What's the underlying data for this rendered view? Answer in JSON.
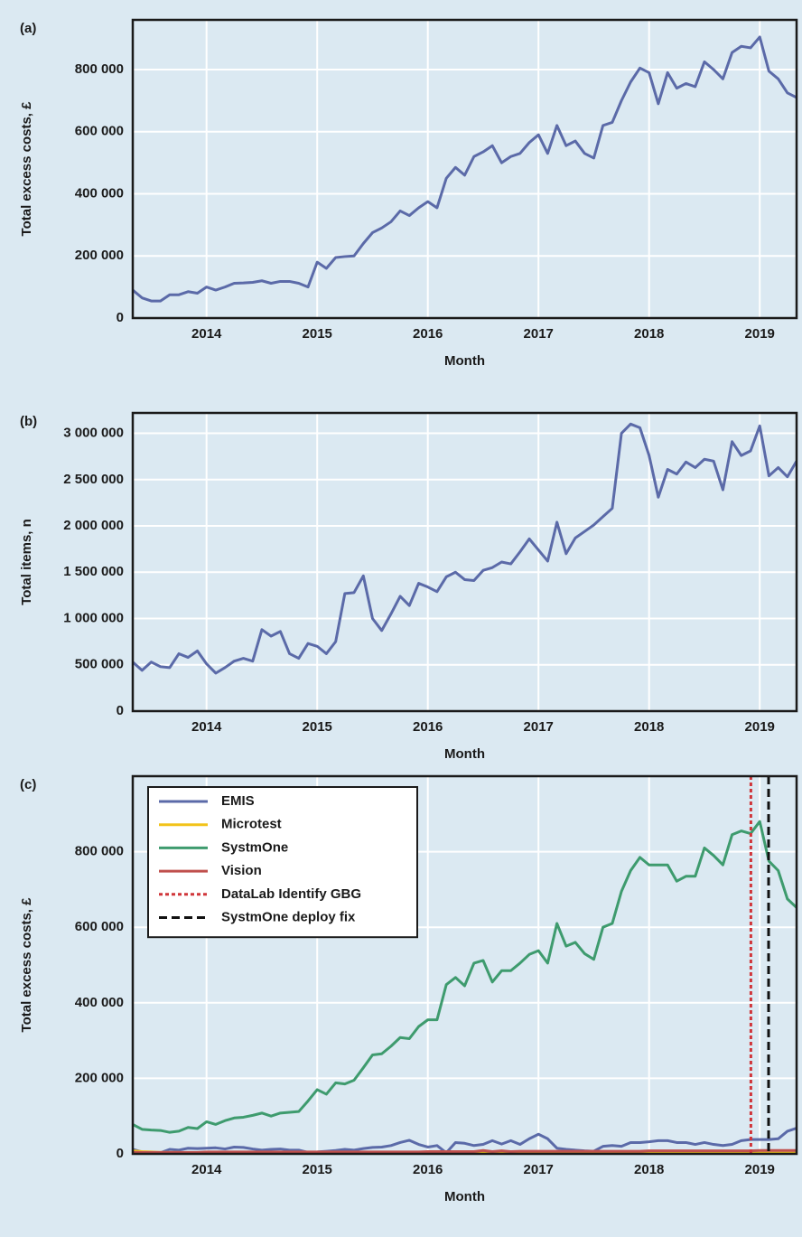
{
  "chart_data": [
    {
      "type": "line",
      "panel_label": "(a)",
      "ylabel": "Total excess costs, £",
      "xlabel": "Month",
      "color": "#5b6aa8",
      "grid": true,
      "xlim": [
        2013.333,
        2019.333
      ],
      "xticks": [
        2014,
        2015,
        2016,
        2017,
        2018,
        2019
      ],
      "ylim": [
        0,
        960000
      ],
      "yticks": [
        0,
        {
          "value": 200000,
          "label": "200 000"
        },
        {
          "value": 400000,
          "label": "400 000"
        },
        {
          "value": 600000,
          "label": "600 000"
        },
        {
          "value": 800000,
          "label": "800 000"
        }
      ],
      "x": [
        2013.333,
        2013.417,
        2013.5,
        2013.583,
        2013.667,
        2013.75,
        2013.833,
        2013.917,
        2014,
        2014.083,
        2014.167,
        2014.25,
        2014.333,
        2014.417,
        2014.5,
        2014.583,
        2014.667,
        2014.75,
        2014.833,
        2014.917,
        2015,
        2015.083,
        2015.167,
        2015.25,
        2015.333,
        2015.417,
        2015.5,
        2015.583,
        2015.667,
        2015.75,
        2015.833,
        2015.917,
        2016,
        2016.083,
        2016.167,
        2016.25,
        2016.333,
        2016.417,
        2016.5,
        2016.583,
        2016.667,
        2016.75,
        2016.833,
        2016.917,
        2017,
        2017.083,
        2017.167,
        2017.25,
        2017.333,
        2017.417,
        2017.5,
        2017.583,
        2017.667,
        2017.75,
        2017.833,
        2017.917,
        2018,
        2018.083,
        2018.167,
        2018.25,
        2018.333,
        2018.417,
        2018.5,
        2018.583,
        2018.667,
        2018.75,
        2018.833,
        2018.917,
        2019,
        2019.083,
        2019.167,
        2019.25,
        2019.333
      ],
      "values": [
        90000,
        65000,
        55000,
        55000,
        75000,
        75000,
        85000,
        80000,
        100000,
        90000,
        100000,
        112000,
        113000,
        115000,
        120000,
        112000,
        118000,
        118000,
        112000,
        100000,
        180000,
        160000,
        195000,
        198000,
        200000,
        240000,
        275000,
        290000,
        310000,
        345000,
        330000,
        355000,
        375000,
        355000,
        450000,
        485000,
        460000,
        520000,
        535000,
        555000,
        500000,
        520000,
        530000,
        565000,
        590000,
        530000,
        620000,
        555000,
        570000,
        530000,
        515000,
        620000,
        630000,
        700000,
        760000,
        805000,
        790000,
        690000,
        790000,
        740000,
        755000,
        745000,
        825000,
        800000,
        770000,
        855000,
        875000,
        870000,
        905000,
        795000,
        770000,
        725000,
        710000
      ]
    },
    {
      "type": "line",
      "panel_label": "(b)",
      "ylabel": "Total items, n",
      "xlabel": "Month",
      "color": "#5b6aa8",
      "grid": true,
      "xlim": [
        2013.333,
        2019.333
      ],
      "xticks": [
        2014,
        2015,
        2016,
        2017,
        2018,
        2019
      ],
      "ylim": [
        0,
        3220000
      ],
      "yticks": [
        0,
        {
          "value": 500000,
          "label": "500 000"
        },
        {
          "value": 1000000,
          "label": "1 000 000"
        },
        {
          "value": 1500000,
          "label": "1 500 000"
        },
        {
          "value": 2000000,
          "label": "2 000 000"
        },
        {
          "value": 2500000,
          "label": "2 500 000"
        },
        {
          "value": 3000000,
          "label": "3 000 000"
        }
      ],
      "x": [
        2013.333,
        2013.417,
        2013.5,
        2013.583,
        2013.667,
        2013.75,
        2013.833,
        2013.917,
        2014,
        2014.083,
        2014.167,
        2014.25,
        2014.333,
        2014.417,
        2014.5,
        2014.583,
        2014.667,
        2014.75,
        2014.833,
        2014.917,
        2015,
        2015.083,
        2015.167,
        2015.25,
        2015.333,
        2015.417,
        2015.5,
        2015.583,
        2015.667,
        2015.75,
        2015.833,
        2015.917,
        2016,
        2016.083,
        2016.167,
        2016.25,
        2016.333,
        2016.417,
        2016.5,
        2016.583,
        2016.667,
        2016.75,
        2016.833,
        2016.917,
        2017,
        2017.083,
        2017.167,
        2017.25,
        2017.333,
        2017.417,
        2017.5,
        2017.583,
        2017.667,
        2017.75,
        2017.833,
        2017.917,
        2018,
        2018.083,
        2018.167,
        2018.25,
        2018.333,
        2018.417,
        2018.5,
        2018.583,
        2018.667,
        2018.75,
        2018.833,
        2018.917,
        2019,
        2019.083,
        2019.167,
        2019.25,
        2019.333
      ],
      "values": [
        530000,
        440000,
        530000,
        480000,
        470000,
        620000,
        580000,
        650000,
        510000,
        410000,
        470000,
        540000,
        570000,
        540000,
        880000,
        810000,
        860000,
        620000,
        570000,
        730000,
        700000,
        620000,
        750000,
        1270000,
        1280000,
        1460000,
        1000000,
        870000,
        1050000,
        1240000,
        1140000,
        1380000,
        1340000,
        1290000,
        1450000,
        1500000,
        1420000,
        1410000,
        1520000,
        1550000,
        1610000,
        1590000,
        1720000,
        1860000,
        1740000,
        1620000,
        2040000,
        1700000,
        1870000,
        1940000,
        2010000,
        2100000,
        2190000,
        3000000,
        3100000,
        3060000,
        2760000,
        2310000,
        2610000,
        2560000,
        2690000,
        2630000,
        2720000,
        2700000,
        2390000,
        2910000,
        2760000,
        2810000,
        3080000,
        2540000,
        2630000,
        2530000,
        2700000
      ]
    },
    {
      "type": "line",
      "panel_label": "(c)",
      "ylabel": "Total excess costs, £",
      "xlabel": "Month",
      "grid": true,
      "legend": "upper left",
      "xlim": [
        2013.333,
        2019.333
      ],
      "xticks": [
        2014,
        2015,
        2016,
        2017,
        2018,
        2019
      ],
      "ylim": [
        0,
        1000000
      ],
      "yticks": [
        0,
        {
          "value": 200000,
          "label": "200 000"
        },
        {
          "value": 400000,
          "label": "400 000"
        },
        {
          "value": 600000,
          "label": "600 000"
        },
        {
          "value": 800000,
          "label": "800 000"
        }
      ],
      "x": [
        2013.333,
        2013.417,
        2013.5,
        2013.583,
        2013.667,
        2013.75,
        2013.833,
        2013.917,
        2014,
        2014.083,
        2014.167,
        2014.25,
        2014.333,
        2014.417,
        2014.5,
        2014.583,
        2014.667,
        2014.75,
        2014.833,
        2014.917,
        2015,
        2015.083,
        2015.167,
        2015.25,
        2015.333,
        2015.417,
        2015.5,
        2015.583,
        2015.667,
        2015.75,
        2015.833,
        2015.917,
        2016,
        2016.083,
        2016.167,
        2016.25,
        2016.333,
        2016.417,
        2016.5,
        2016.583,
        2016.667,
        2016.75,
        2016.833,
        2016.917,
        2017,
        2017.083,
        2017.167,
        2017.25,
        2017.333,
        2017.417,
        2017.5,
        2017.583,
        2017.667,
        2017.75,
        2017.833,
        2017.917,
        2018,
        2018.083,
        2018.167,
        2018.25,
        2018.333,
        2018.417,
        2018.5,
        2018.583,
        2018.667,
        2018.75,
        2018.833,
        2018.917,
        2019,
        2019.083,
        2019.167,
        2019.25,
        2019.333
      ],
      "series": [
        {
          "name": "EMIS",
          "color": "#5b6aa8",
          "values": [
            12000,
            5000,
            3000,
            3000,
            12000,
            10000,
            15000,
            14000,
            15000,
            16000,
            13000,
            18000,
            17000,
            13000,
            10000,
            12000,
            13000,
            10000,
            10000,
            4000,
            5000,
            7000,
            9000,
            12000,
            10000,
            14000,
            17000,
            18000,
            22000,
            30000,
            36000,
            25000,
            18000,
            22000,
            3000,
            30000,
            28000,
            22000,
            25000,
            35000,
            26000,
            35000,
            25000,
            40000,
            52000,
            40000,
            15000,
            12000,
            10000,
            8000,
            7000,
            20000,
            22000,
            20000,
            30000,
            30000,
            32000,
            35000,
            35000,
            30000,
            30000,
            25000,
            30000,
            25000,
            22000,
            25000,
            35000,
            38000,
            38000,
            38000,
            40000,
            60000,
            68000
          ]
        },
        {
          "name": "Microtest",
          "color": "#f2c31a",
          "values": [
            8000,
            6000,
            5000,
            4000,
            4000,
            4000,
            3000,
            3000,
            3000,
            3000,
            3000,
            3000,
            3000,
            3000,
            3000,
            3000,
            3000,
            3000,
            3000,
            3000,
            2000,
            2000,
            2000,
            2000,
            2000,
            2000,
            2000,
            2000,
            2000,
            2000,
            2000,
            2000,
            2000,
            2000,
            2000,
            2000,
            2000,
            2000,
            3000,
            3000,
            3000,
            3000,
            2000,
            2000,
            2000,
            2000,
            2000,
            2000,
            2000,
            2000,
            2000,
            2000,
            2000,
            2000,
            2000,
            2000,
            2000,
            2000,
            2000,
            2000,
            2000,
            2000,
            2000,
            2000,
            2000,
            2000,
            2000,
            2000,
            2000,
            2000,
            2000,
            2000,
            2000
          ]
        },
        {
          "name": "SystmOne",
          "color": "#3e9b6e",
          "values": [
            78000,
            65000,
            63000,
            62000,
            57000,
            60000,
            70000,
            67000,
            85000,
            78000,
            88000,
            95000,
            97000,
            102000,
            108000,
            100000,
            108000,
            110000,
            112000,
            140000,
            170000,
            158000,
            188000,
            185000,
            195000,
            228000,
            262000,
            265000,
            285000,
            308000,
            305000,
            337000,
            355000,
            355000,
            448000,
            467000,
            445000,
            505000,
            512000,
            455000,
            485000,
            485000,
            505000,
            528000,
            538000,
            505000,
            610000,
            550000,
            560000,
            530000,
            515000,
            600000,
            610000,
            695000,
            750000,
            785000,
            765000,
            765000,
            765000,
            722000,
            735000,
            735000,
            810000,
            790000,
            765000,
            845000,
            855000,
            848000,
            880000,
            775000,
            750000,
            675000,
            652000
          ]
        },
        {
          "name": "Vision",
          "color": "#c0504d",
          "values": [
            4000,
            4000,
            4000,
            4000,
            4000,
            4000,
            4000,
            4000,
            5000,
            5000,
            5000,
            5000,
            5000,
            5000,
            5000,
            5000,
            5000,
            5000,
            5000,
            5000,
            5000,
            5000,
            5000,
            5000,
            5000,
            5000,
            5000,
            5000,
            5000,
            5000,
            5000,
            5000,
            6000,
            6000,
            6000,
            6000,
            6000,
            6000,
            9000,
            6000,
            8000,
            6000,
            7000,
            7000,
            7000,
            7000,
            7000,
            7000,
            7000,
            7000,
            7000,
            7000,
            7000,
            7000,
            7000,
            7000,
            8000,
            8000,
            8000,
            8000,
            8000,
            8000,
            8000,
            8000,
            8000,
            8000,
            8000,
            8000,
            9000,
            9000,
            9000,
            9000,
            9000
          ]
        }
      ],
      "vlines": [
        {
          "name": "DataLab Identify GBG",
          "color": "#d0363a",
          "style": "dotted",
          "x": 2018.92
        },
        {
          "name": "SystmOne deploy fix",
          "color": "#111111",
          "style": "dashed",
          "x": 2019.08
        }
      ]
    }
  ]
}
